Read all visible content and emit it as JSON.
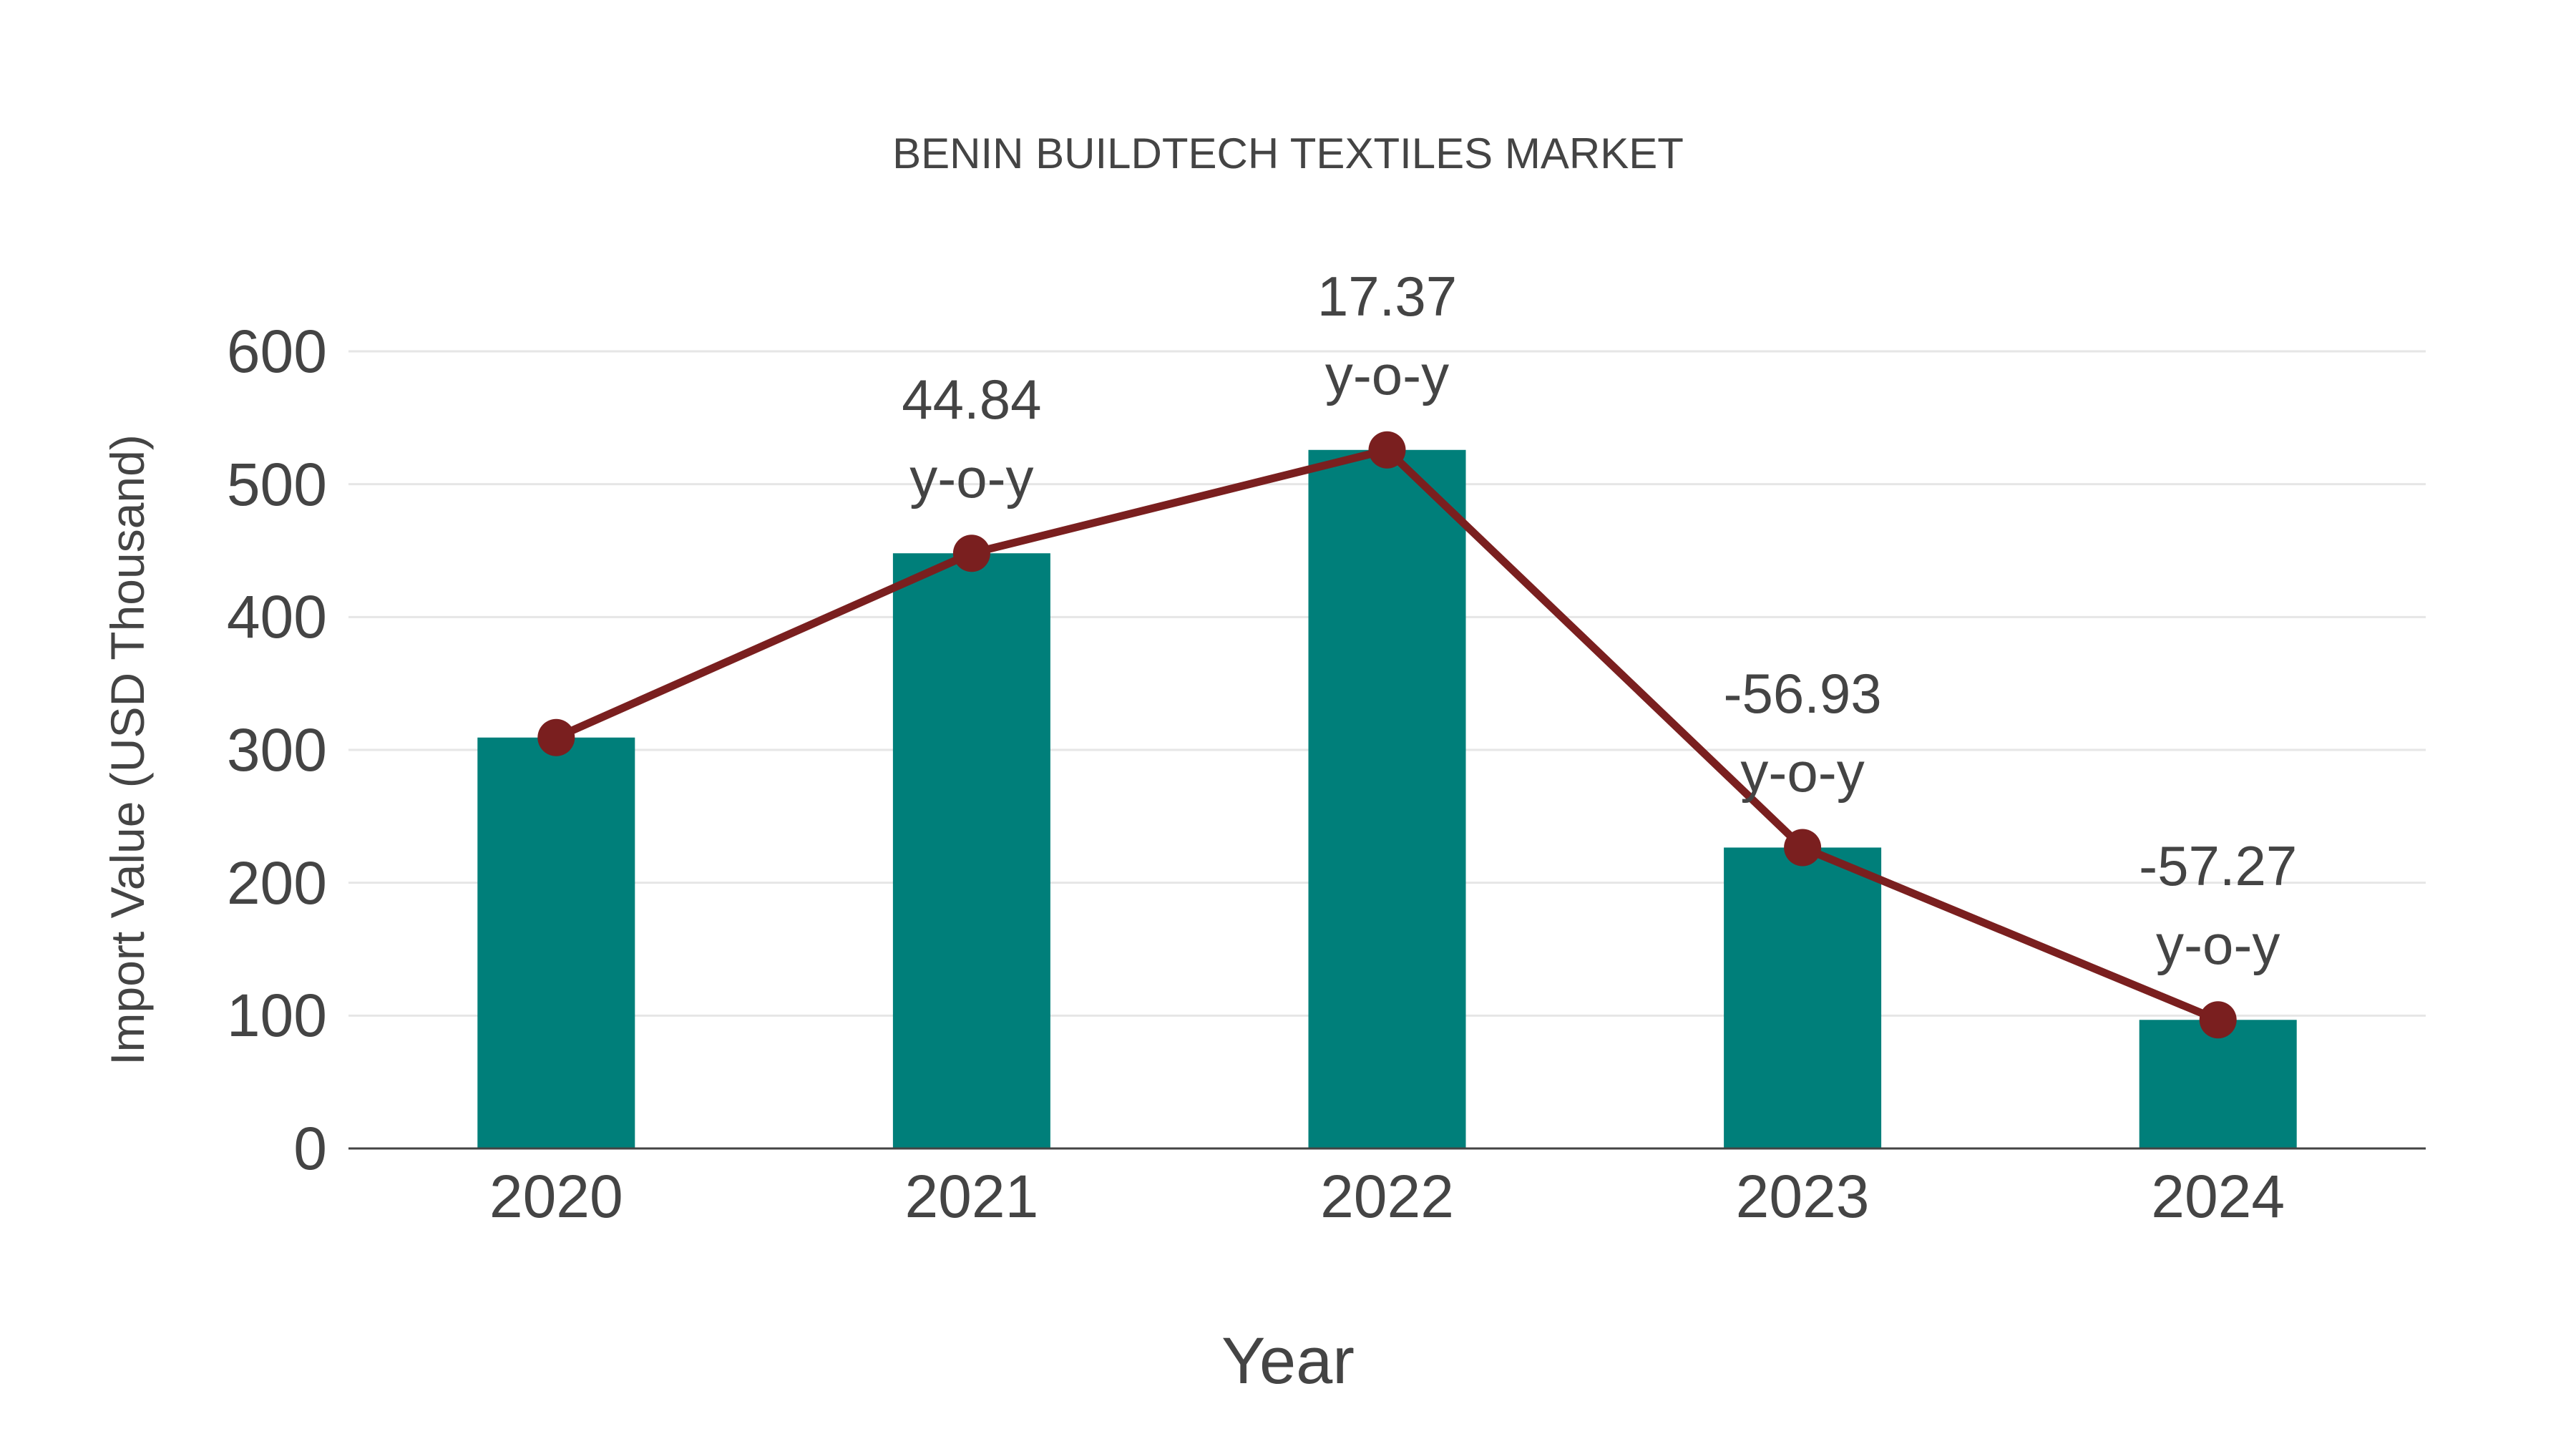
{
  "chart_data": {
    "type": "bar",
    "title": "BENIN BUILDTECH TEXTILES MARKET",
    "xlabel": "Year",
    "ylabel": "Import Value (USD Thousand)",
    "categories": [
      "2020",
      "2021",
      "2022",
      "2023",
      "2024"
    ],
    "series": [
      {
        "name": "Import Value",
        "type": "bar",
        "color": "#007f7a",
        "values": [
          309.3,
          448.0,
          525.8,
          226.5,
          96.8
        ]
      },
      {
        "name": "Import Value trend",
        "type": "line",
        "color": "#7a1f1f",
        "values": [
          309.3,
          448.0,
          525.8,
          226.5,
          96.8
        ]
      }
    ],
    "annotations": [
      {
        "year": "2021",
        "value": "44.84",
        "suffix": "y-o-y"
      },
      {
        "year": "2022",
        "value": "17.37",
        "suffix": "y-o-y"
      },
      {
        "year": "2023",
        "value": "-56.93",
        "suffix": "y-o-y"
      },
      {
        "year": "2024",
        "value": "-57.27",
        "suffix": "y-o-y"
      }
    ],
    "yticks": [
      "0",
      "100",
      "200",
      "300",
      "400",
      "500",
      "600"
    ],
    "ylim": [
      0,
      600
    ],
    "grid": true,
    "legend": "none"
  }
}
